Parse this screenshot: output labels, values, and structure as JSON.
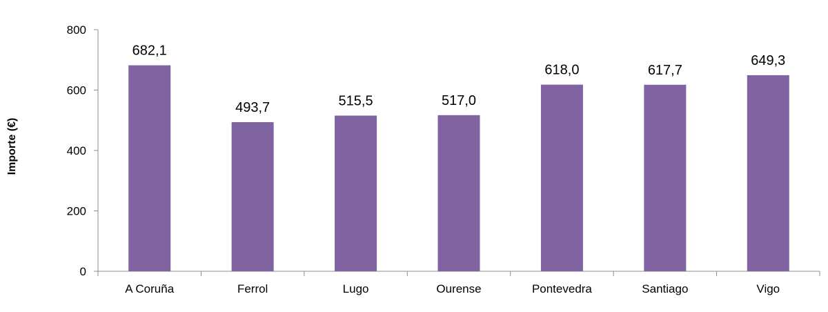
{
  "chart_data": {
    "type": "bar",
    "categories": [
      "A Coruña",
      "Ferrol",
      "Lugo",
      "Ourense",
      "Pontevedra",
      "Santiago",
      "Vigo"
    ],
    "values": [
      682.1,
      493.7,
      515.5,
      517.0,
      618.0,
      617.7,
      649.3
    ],
    "value_labels": [
      "682,1",
      "493,7",
      "515,5",
      "517,0",
      "618,0",
      "617,7",
      "649,3"
    ],
    "ylabel": "Importe (€)",
    "xlabel": "",
    "ylim": [
      0,
      800
    ],
    "yticks": [
      0,
      200,
      400,
      600,
      800
    ],
    "ytick_labels": [
      "0",
      "200",
      "400",
      "600",
      "800"
    ],
    "bar_color": "#8064a2",
    "grid": false
  }
}
